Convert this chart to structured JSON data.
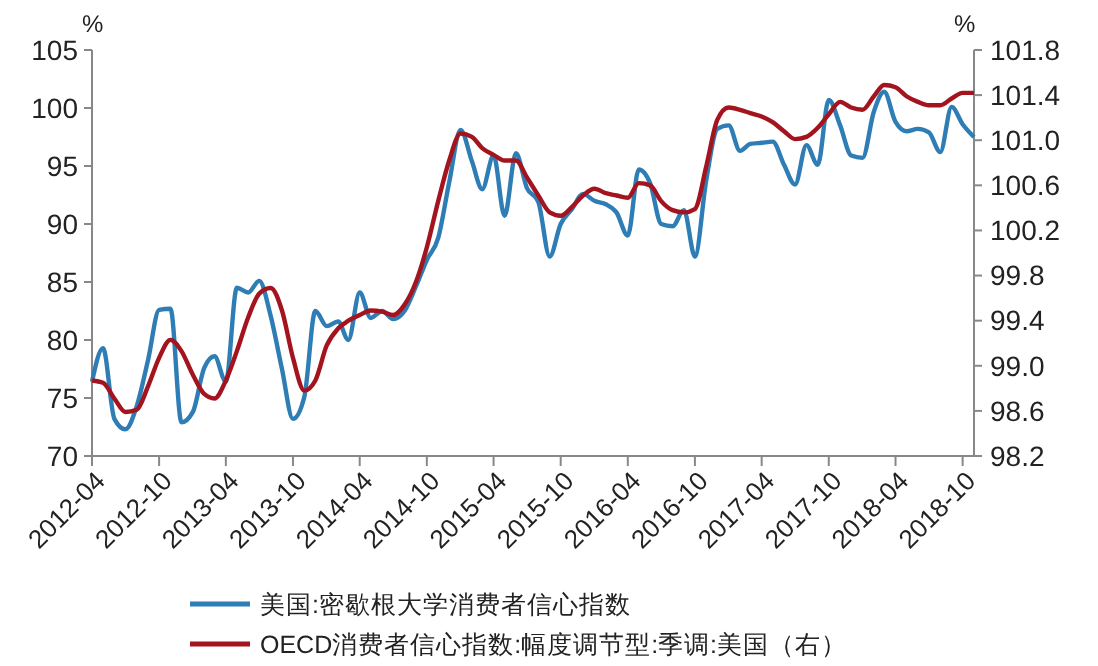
{
  "chart_data": {
    "type": "line",
    "ylabel": "%",
    "y2label": "%",
    "x": [
      "2012-04",
      "2012-05",
      "2012-06",
      "2012-07",
      "2012-08",
      "2012-09",
      "2012-10",
      "2012-11",
      "2012-12",
      "2013-01",
      "2013-02",
      "2013-03",
      "2013-04",
      "2013-05",
      "2013-06",
      "2013-07",
      "2013-08",
      "2013-09",
      "2013-10",
      "2013-11",
      "2013-12",
      "2014-01",
      "2014-02",
      "2014-03",
      "2014-04",
      "2014-05",
      "2014-06",
      "2014-07",
      "2014-08",
      "2014-09",
      "2014-10",
      "2014-11",
      "2014-12",
      "2015-01",
      "2015-02",
      "2015-03",
      "2015-04",
      "2015-05",
      "2015-06",
      "2015-07",
      "2015-08",
      "2015-09",
      "2015-10",
      "2015-11",
      "2015-12",
      "2016-01",
      "2016-02",
      "2016-03",
      "2016-04",
      "2016-05",
      "2016-06",
      "2016-07",
      "2016-08",
      "2016-09",
      "2016-10",
      "2016-11",
      "2016-12",
      "2017-01",
      "2017-02",
      "2017-03",
      "2017-04",
      "2017-05",
      "2017-06",
      "2017-07",
      "2017-08",
      "2017-09",
      "2017-10",
      "2017-11",
      "2017-12",
      "2018-01",
      "2018-02",
      "2018-03",
      "2018-04",
      "2018-05",
      "2018-06",
      "2018-07",
      "2018-08",
      "2018-09",
      "2018-10",
      "2018-11"
    ],
    "series": [
      {
        "name": "美国:密歇根大学消费者信心指数",
        "color": "#2e7eb5",
        "values": [
          76.4,
          79.3,
          73.2,
          72.3,
          74.3,
          78.3,
          82.6,
          82.7,
          72.9,
          73.8,
          77.6,
          78.6,
          76.4,
          84.5,
          84.1,
          85.1,
          82.1,
          77.5,
          73.2,
          75.1,
          82.5,
          81.2,
          81.6,
          80.0,
          84.1,
          81.9,
          82.5,
          81.8,
          82.5,
          84.6,
          86.9,
          88.8,
          93.6,
          98.1,
          95.4,
          93.0,
          95.9,
          90.7,
          96.1,
          93.1,
          91.9,
          87.2,
          90.0,
          91.3,
          92.6,
          92.0,
          91.7,
          91.0,
          89.0,
          94.7,
          93.5,
          90.0,
          89.8,
          91.2,
          87.2,
          93.8,
          98.2,
          98.5,
          96.3,
          96.9,
          97.0,
          97.1,
          95.1,
          93.4,
          96.8,
          95.1,
          100.7,
          98.5,
          95.9,
          95.7,
          99.7,
          101.4,
          98.8,
          98.0,
          98.2,
          97.9,
          96.2,
          100.1,
          98.6,
          97.5
        ]
      },
      {
        "name": "OECD消费者信心指数:幅度调节型:季调:美国（右）",
        "color": "#a3141e",
        "axis": "y2",
        "values": [
          98.87,
          98.85,
          98.71,
          98.59,
          98.61,
          98.82,
          99.07,
          99.23,
          99.13,
          98.92,
          98.75,
          98.71,
          98.87,
          99.13,
          99.43,
          99.64,
          99.69,
          99.49,
          99.07,
          98.78,
          98.87,
          99.18,
          99.33,
          99.4,
          99.45,
          99.49,
          99.48,
          99.45,
          99.54,
          99.74,
          100.05,
          100.46,
          100.82,
          101.06,
          101.03,
          100.93,
          100.87,
          100.82,
          100.82,
          100.67,
          100.51,
          100.36,
          100.33,
          100.41,
          100.51,
          100.57,
          100.53,
          100.51,
          100.49,
          100.62,
          100.6,
          100.46,
          100.38,
          100.36,
          100.39,
          100.77,
          101.18,
          101.29,
          101.27,
          101.24,
          101.21,
          101.16,
          101.08,
          101.01,
          101.03,
          101.11,
          101.23,
          101.34,
          101.29,
          101.27,
          101.39,
          101.49,
          101.47,
          101.39,
          101.34,
          101.31,
          101.31,
          101.37,
          101.42,
          101.42
        ]
      }
    ],
    "xlim": [
      "2012-04",
      "2018-11"
    ],
    "xticks": [
      "2012-04",
      "2012-10",
      "2013-04",
      "2013-10",
      "2014-04",
      "2014-10",
      "2015-04",
      "2015-10",
      "2016-04",
      "2016-10",
      "2017-04",
      "2017-10",
      "2018-04",
      "2018-10"
    ],
    "ylim": [
      70,
      105
    ],
    "yticks": [
      70,
      75,
      80,
      85,
      90,
      95,
      100,
      105
    ],
    "y2lim": [
      98.2,
      101.8
    ],
    "y2ticks": [
      {
        "value": 98.2,
        "label": "98.2"
      },
      {
        "value": 98.6,
        "label": "98.6"
      },
      {
        "value": 99,
        "label": "99.0"
      },
      {
        "value": 99.4,
        "label": "99.4"
      },
      {
        "value": 99.8,
        "label": "99.8"
      },
      {
        "value": 100.2,
        "label": "100.2"
      },
      {
        "value": 100.6,
        "label": "100.6"
      },
      {
        "value": 101,
        "label": "101.0"
      },
      {
        "value": 101.4,
        "label": "101.4"
      },
      {
        "value": 101.8,
        "label": "101.8"
      }
    ],
    "grid": false,
    "legend": "bottom"
  }
}
